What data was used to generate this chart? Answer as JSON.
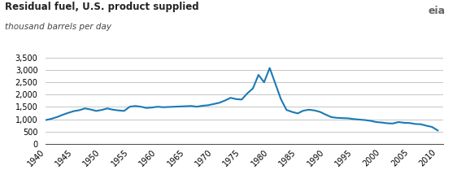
{
  "title": "Residual fuel, U.S. product supplied",
  "subtitle": "thousand barrels per day",
  "line_color": "#1a7ab5",
  "background_color": "#ffffff",
  "grid_color": "#bbbbbb",
  "xlim": [
    1940,
    2011
  ],
  "ylim": [
    0,
    3500
  ],
  "yticks": [
    0,
    500,
    1000,
    1500,
    2000,
    2500,
    3000,
    3500
  ],
  "xticks": [
    1940,
    1945,
    1950,
    1955,
    1960,
    1965,
    1970,
    1975,
    1980,
    1985,
    1990,
    1995,
    2000,
    2005,
    2010
  ],
  "years": [
    1940,
    1941,
    1942,
    1943,
    1944,
    1945,
    1946,
    1947,
    1948,
    1949,
    1950,
    1951,
    1952,
    1953,
    1954,
    1955,
    1956,
    1957,
    1958,
    1959,
    1960,
    1961,
    1962,
    1963,
    1964,
    1965,
    1966,
    1967,
    1968,
    1969,
    1970,
    1971,
    1972,
    1973,
    1974,
    1975,
    1976,
    1977,
    1978,
    1979,
    1980,
    1981,
    1982,
    1983,
    1984,
    1985,
    1986,
    1987,
    1988,
    1989,
    1990,
    1991,
    1992,
    1993,
    1994,
    1995,
    1996,
    1997,
    1998,
    1999,
    2000,
    2001,
    2002,
    2003,
    2004,
    2005,
    2006,
    2007,
    2008,
    2009,
    2010
  ],
  "values": [
    970,
    1020,
    1090,
    1180,
    1260,
    1330,
    1370,
    1440,
    1400,
    1340,
    1380,
    1440,
    1390,
    1360,
    1340,
    1510,
    1540,
    1510,
    1460,
    1480,
    1510,
    1490,
    1500,
    1510,
    1520,
    1530,
    1540,
    1510,
    1550,
    1570,
    1620,
    1670,
    1760,
    1870,
    1820,
    1800,
    2050,
    2250,
    2800,
    2500,
    3080,
    2450,
    1820,
    1380,
    1300,
    1240,
    1350,
    1390,
    1360,
    1300,
    1190,
    1090,
    1060,
    1050,
    1040,
    1010,
    990,
    970,
    940,
    890,
    870,
    840,
    830,
    890,
    860,
    850,
    810,
    800,
    740,
    690,
    550
  ],
  "title_fontsize": 8.5,
  "subtitle_fontsize": 7.5,
  "tick_fontsize": 7,
  "line_width": 1.5
}
